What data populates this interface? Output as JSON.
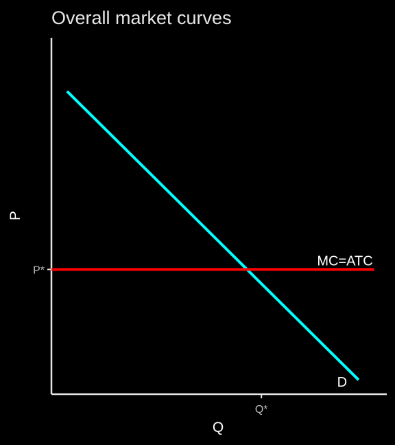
{
  "chart_data": {
    "type": "line",
    "title": "Overall market curves",
    "xlabel": "Q",
    "ylabel": "P",
    "xlim": [
      0,
      10
    ],
    "ylim": [
      0,
      10
    ],
    "x_ticks": [
      {
        "value": 6.7,
        "label": "Q*"
      }
    ],
    "y_ticks": [
      {
        "value": 3.5,
        "label": "P*"
      }
    ],
    "grid": false,
    "series": [
      {
        "name": "D",
        "color": "#00ffff",
        "x": [
          0.5,
          9.8
        ],
        "y": [
          8.5,
          0.4
        ]
      },
      {
        "name": "MC=ATC",
        "color": "#ff0000",
        "x": [
          0,
          10.3
        ],
        "y": [
          3.5,
          3.5
        ]
      }
    ]
  },
  "colors": {
    "background": "#000000",
    "axis": "#e6e6e6"
  }
}
